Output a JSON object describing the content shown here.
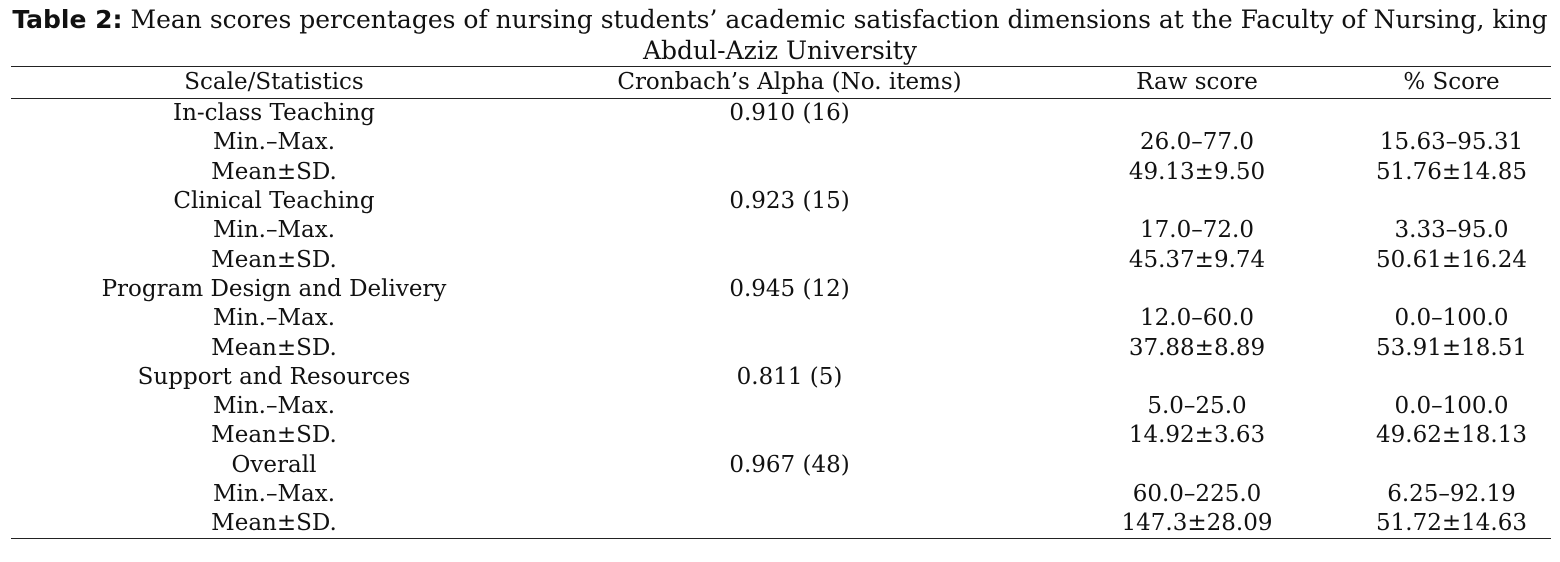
{
  "caption": {
    "label": "Table 2:",
    "text": " Mean scores percentages of nursing students’ academic satisfaction dimensions at the Faculty of Nursing, king",
    "text_line2": "Abdul-Aziz University"
  },
  "table": {
    "headers": [
      "Scale/Statistics",
      "Cronbach’s Alpha (No. items)",
      "Raw score",
      "% Score"
    ],
    "rows": [
      [
        "In-class Teaching",
        "0.910 (16)",
        "",
        ""
      ],
      [
        "Min.–Max.",
        "",
        "26.0–77.0",
        "15.63–95.31"
      ],
      [
        "Mean±SD.",
        "",
        "49.13±9.50",
        "51.76±14.85"
      ],
      [
        "Clinical Teaching",
        "0.923 (15)",
        "",
        ""
      ],
      [
        "Min.–Max.",
        "",
        "17.0–72.0",
        "3.33–95.0"
      ],
      [
        "Mean±SD.",
        "",
        "45.37±9.74",
        "50.61±16.24"
      ],
      [
        "Program Design and Delivery",
        "0.945 (12)",
        "",
        ""
      ],
      [
        "Min.–Max.",
        "",
        "12.0–60.0",
        "0.0–100.0"
      ],
      [
        "Mean±SD.",
        "",
        "37.88±8.89",
        "53.91±18.51"
      ],
      [
        "Support and Resources",
        "0.811 (5)",
        "",
        ""
      ],
      [
        "Min.–Max.",
        "",
        "5.0–25.0",
        "0.0–100.0"
      ],
      [
        "Mean±SD.",
        "",
        "14.92±3.63",
        "49.62±18.13"
      ],
      [
        "Overall",
        "0.967 (48)",
        "",
        ""
      ],
      [
        "Min.–Max.",
        "",
        "60.0–225.0",
        "6.25–92.19"
      ],
      [
        "Mean±SD.",
        "",
        "147.3±28.09",
        "51.72±14.63"
      ]
    ]
  }
}
